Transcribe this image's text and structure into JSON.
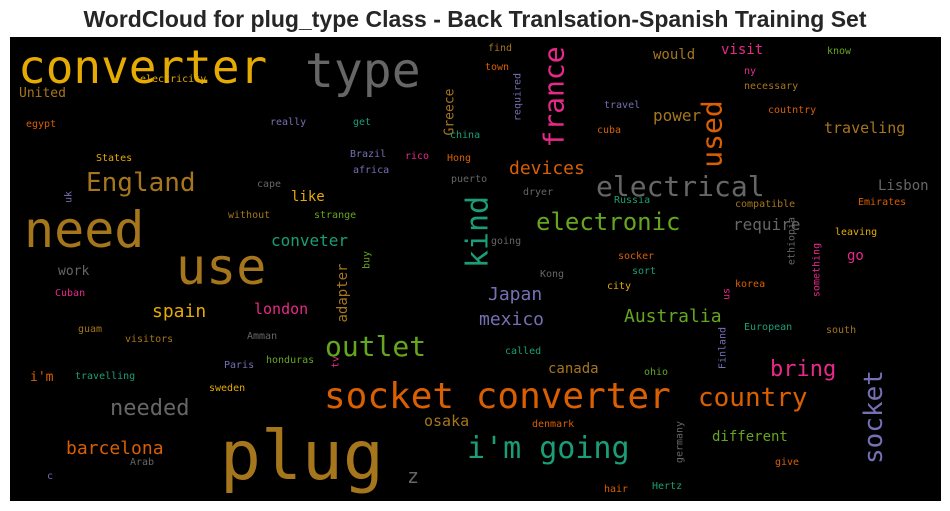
{
  "title": "WordCloud for plug_type Class - Back Tranlsation-Spanish Training Set",
  "chart_data": {
    "type": "wordcloud",
    "title": "WordCloud for plug_type Class - Back Tranlsation-Spanish Training Set",
    "background": "#000000",
    "palette": [
      "#1b9e77",
      "#d95f02",
      "#7570b3",
      "#e7298a",
      "#66a61e",
      "#e6ab02",
      "#a6761d",
      "#666666"
    ],
    "words": [
      {
        "text": "converter",
        "size": 46,
        "color": "#e6ab02"
      },
      {
        "text": "type",
        "size": 48,
        "color": "#666666"
      },
      {
        "text": "need",
        "size": 50,
        "color": "#a6761d"
      },
      {
        "text": "use",
        "size": 50,
        "color": "#a6761d"
      },
      {
        "text": "plug",
        "size": 68,
        "color": "#a6761d"
      },
      {
        "text": "socket converter",
        "size": 36,
        "color": "#d95f02"
      },
      {
        "text": "electrical",
        "size": 28,
        "color": "#666666"
      },
      {
        "text": "England",
        "size": 26,
        "color": "#a6761d"
      },
      {
        "text": "kind",
        "size": 30,
        "color": "#1b9e77",
        "rotate": true
      },
      {
        "text": "france",
        "size": 28,
        "color": "#e7298a",
        "rotate": true
      },
      {
        "text": "used",
        "size": 28,
        "color": "#d95f02",
        "rotate": true
      },
      {
        "text": "electronic",
        "size": 24,
        "color": "#66a61e"
      },
      {
        "text": "outlet",
        "size": 28,
        "color": "#66a61e"
      },
      {
        "text": "i'm going",
        "size": 30,
        "color": "#1b9e77"
      },
      {
        "text": "country",
        "size": 26,
        "color": "#d95f02"
      },
      {
        "text": "socket",
        "size": 26,
        "color": "#7570b3",
        "rotate": true
      },
      {
        "text": "needed",
        "size": 22,
        "color": "#666666"
      },
      {
        "text": "bring",
        "size": 22,
        "color": "#e7298a"
      },
      {
        "text": "devices",
        "size": 18,
        "color": "#d95f02"
      },
      {
        "text": "Australia",
        "size": 18,
        "color": "#66a61e"
      },
      {
        "text": "mexico",
        "size": 18,
        "color": "#7570b3"
      },
      {
        "text": "Japan",
        "size": 18,
        "color": "#7570b3"
      },
      {
        "text": "spain",
        "size": 18,
        "color": "#e6ab02"
      },
      {
        "text": "barcelona",
        "size": 18,
        "color": "#d95f02"
      },
      {
        "text": "z",
        "size": 20,
        "color": "#666666"
      },
      {
        "text": "power",
        "size": 16,
        "color": "#a6761d"
      },
      {
        "text": "traveling",
        "size": 15,
        "color": "#a6761d"
      },
      {
        "text": "conveter",
        "size": 16,
        "color": "#1b9e77"
      },
      {
        "text": "require",
        "size": 16,
        "color": "#666666"
      },
      {
        "text": "london",
        "size": 15,
        "color": "#e7298a"
      },
      {
        "text": "osaka",
        "size": 15,
        "color": "#a6761d"
      },
      {
        "text": "different",
        "size": 14,
        "color": "#66a61e"
      },
      {
        "text": "canada",
        "size": 14,
        "color": "#a6761d"
      },
      {
        "text": "adapter",
        "size": 14,
        "color": "#a6761d",
        "rotate": true
      },
      {
        "text": "Lisbon",
        "size": 14,
        "color": "#666666"
      },
      {
        "text": "like",
        "size": 14,
        "color": "#e6ab02"
      },
      {
        "text": "would",
        "size": 14,
        "color": "#a6761d"
      },
      {
        "text": "visit",
        "size": 14,
        "color": "#e7298a"
      },
      {
        "text": "go",
        "size": 14,
        "color": "#e7298a"
      },
      {
        "text": "United",
        "size": 13,
        "color": "#a6761d"
      },
      {
        "text": "work",
        "size": 13,
        "color": "#666666"
      },
      {
        "text": "Greece",
        "size": 13,
        "color": "#a6761d",
        "rotate": true
      },
      {
        "text": "i'm",
        "size": 13,
        "color": "#d95f02"
      },
      {
        "text": "find",
        "size": 10,
        "color": "#a6761d"
      },
      {
        "text": "town",
        "size": 10,
        "color": "#d95f02"
      },
      {
        "text": "know",
        "size": 10,
        "color": "#66a61e"
      },
      {
        "text": "ny",
        "size": 10,
        "color": "#e7298a"
      },
      {
        "text": "necessary",
        "size": 10,
        "color": "#a6761d"
      },
      {
        "text": "coutntry",
        "size": 10,
        "color": "#d95f02"
      },
      {
        "text": "electricity",
        "size": 10,
        "color": "#e6ab02"
      },
      {
        "text": "egypt",
        "size": 10,
        "color": "#d95f02"
      },
      {
        "text": "really",
        "size": 10,
        "color": "#7570b3"
      },
      {
        "text": "get",
        "size": 10,
        "color": "#1b9e77"
      },
      {
        "text": "required",
        "size": 10,
        "color": "#7570b3",
        "rotate": true
      },
      {
        "text": "travel",
        "size": 10,
        "color": "#7570b3"
      },
      {
        "text": "cuba",
        "size": 10,
        "color": "#d95f02"
      },
      {
        "text": "china",
        "size": 10,
        "color": "#1b9e77"
      },
      {
        "text": "States",
        "size": 10,
        "color": "#e6ab02"
      },
      {
        "text": "Brazil",
        "size": 10,
        "color": "#7570b3"
      },
      {
        "text": "rico",
        "size": 10,
        "color": "#e7298a"
      },
      {
        "text": "Hong",
        "size": 10,
        "color": "#d95f02"
      },
      {
        "text": "africa",
        "size": 10,
        "color": "#7570b3"
      },
      {
        "text": "cape",
        "size": 10,
        "color": "#666666"
      },
      {
        "text": "puerto",
        "size": 10,
        "color": "#666666"
      },
      {
        "text": "uk",
        "size": 10,
        "color": "#7570b3",
        "rotate": true
      },
      {
        "text": "without",
        "size": 10,
        "color": "#a6761d"
      },
      {
        "text": "strange",
        "size": 10,
        "color": "#66a61e"
      },
      {
        "text": "dryer",
        "size": 10,
        "color": "#666666"
      },
      {
        "text": "compatible",
        "size": 10,
        "color": "#a6761d"
      },
      {
        "text": "Emirates",
        "size": 10,
        "color": "#d95f02"
      },
      {
        "text": "Russia",
        "size": 10,
        "color": "#1b9e77"
      },
      {
        "text": "going",
        "size": 10,
        "color": "#666666"
      },
      {
        "text": "ethiopia",
        "size": 10,
        "color": "#666666",
        "rotate": true
      },
      {
        "text": "leaving",
        "size": 10,
        "color": "#e6ab02"
      },
      {
        "text": "buy",
        "size": 10,
        "color": "#66a61e",
        "rotate": true
      },
      {
        "text": "socker",
        "size": 10,
        "color": "#d95f02"
      },
      {
        "text": "something",
        "size": 10,
        "color": "#e7298a",
        "rotate": true
      },
      {
        "text": "Kong",
        "size": 10,
        "color": "#666666"
      },
      {
        "text": "sort",
        "size": 10,
        "color": "#1b9e77"
      },
      {
        "text": "korea",
        "size": 10,
        "color": "#d95f02"
      },
      {
        "text": "Cuban",
        "size": 10,
        "color": "#e7298a"
      },
      {
        "text": "city",
        "size": 10,
        "color": "#e6ab02"
      },
      {
        "text": "us",
        "size": 10,
        "color": "#e7298a",
        "rotate": true
      },
      {
        "text": "guam",
        "size": 10,
        "color": "#a6761d"
      },
      {
        "text": "visitors",
        "size": 10,
        "color": "#a6761d"
      },
      {
        "text": "Amman",
        "size": 10,
        "color": "#666666"
      },
      {
        "text": "European",
        "size": 10,
        "color": "#1b9e77"
      },
      {
        "text": "south",
        "size": 10,
        "color": "#a6761d"
      },
      {
        "text": "Paris",
        "size": 10,
        "color": "#7570b3"
      },
      {
        "text": "honduras",
        "size": 10,
        "color": "#66a61e"
      },
      {
        "text": "tv",
        "size": 10,
        "color": "#e7298a",
        "rotate": true
      },
      {
        "text": "called",
        "size": 10,
        "color": "#1b9e77"
      },
      {
        "text": "Finland",
        "size": 10,
        "color": "#7570b3",
        "rotate": true
      },
      {
        "text": "travelling",
        "size": 10,
        "color": "#1b9e77"
      },
      {
        "text": "sweden",
        "size": 10,
        "color": "#e6ab02"
      },
      {
        "text": "ohio",
        "size": 10,
        "color": "#66a61e"
      },
      {
        "text": "denmark",
        "size": 10,
        "color": "#d95f02"
      },
      {
        "text": "germany",
        "size": 10,
        "color": "#666666",
        "rotate": true
      },
      {
        "text": "give",
        "size": 10,
        "color": "#d95f02"
      },
      {
        "text": "Arab",
        "size": 10,
        "color": "#666666"
      },
      {
        "text": "c",
        "size": 10,
        "color": "#7570b3"
      },
      {
        "text": "hair",
        "size": 10,
        "color": "#d95f02"
      },
      {
        "text": "Hertz",
        "size": 10,
        "color": "#1b9e77"
      }
    ]
  }
}
